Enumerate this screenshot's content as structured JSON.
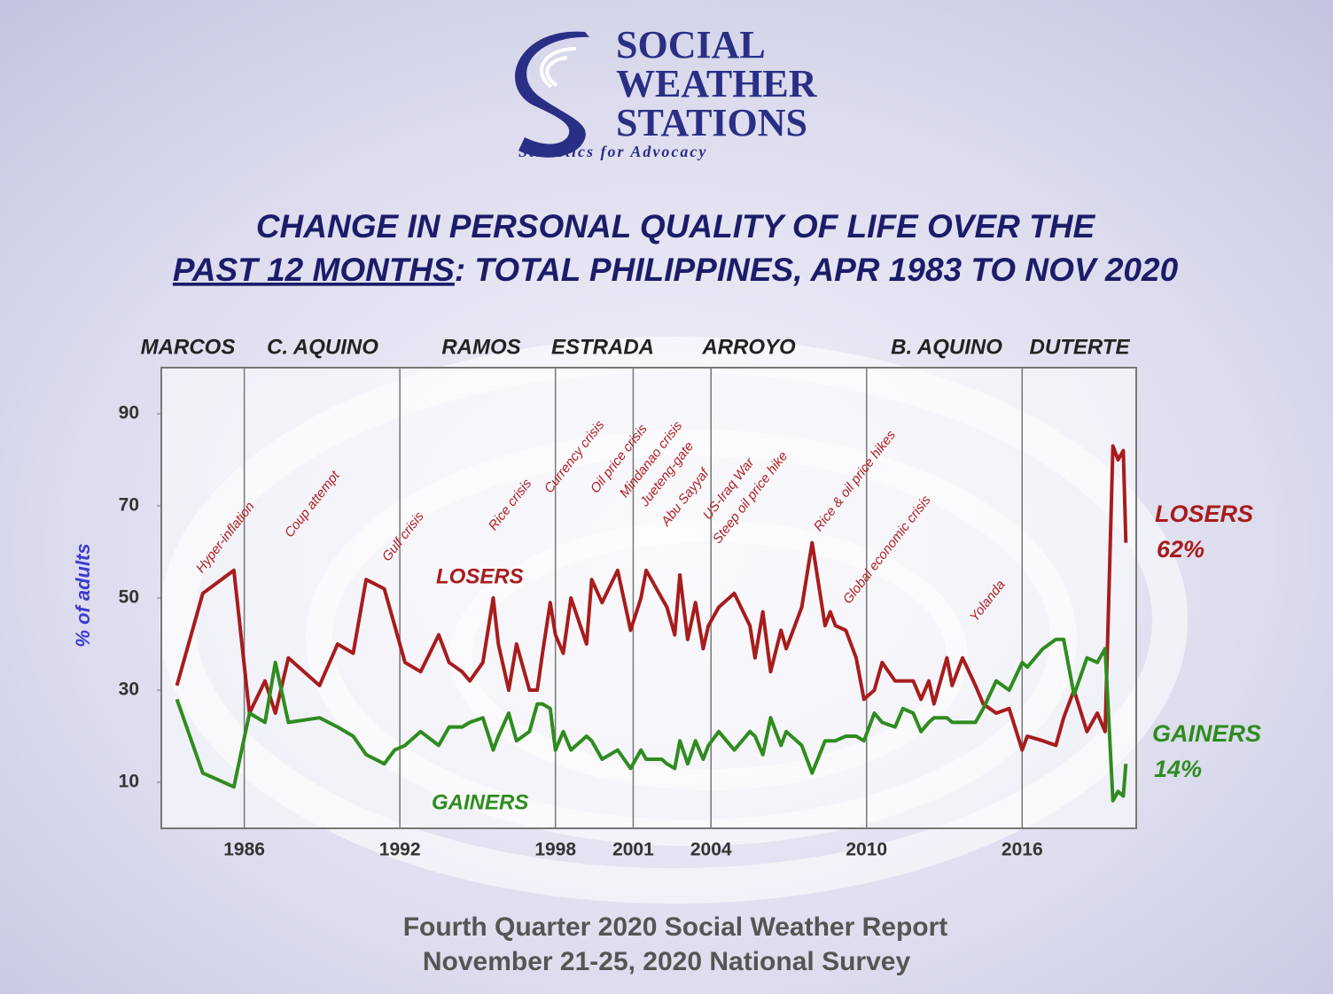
{
  "header": {
    "logo_lines": [
      "SOCIAL",
      "WEATHER",
      "STATIONS"
    ],
    "tagline": "Statistics for Advocacy"
  },
  "chart_data": {
    "type": "line",
    "title_lines": [
      "CHANGE IN PERSONAL QUALITY OF LIFE OVER THE"
    ],
    "title_underlined": "PAST 12 MONTHS",
    "title_rest": ": TOTAL PHILIPPINES, APR 1983 TO NOV 2020",
    "ylabel": "% of adults",
    "administrations": [
      "MARCOS",
      "C. AQUINO",
      "RAMOS",
      "ESTRADA",
      "ARROYO",
      "B. AQUINO",
      "DUTERTE"
    ],
    "annotations": [
      "Hyper-inflation",
      "Coup attempt",
      "Gulf crisis",
      "Rice crisis",
      "Currency crisis",
      "Oil price crisis",
      "Mindanao crisis",
      "Jueteng-gate",
      "Abu Sayyaf",
      "US-Iraq War",
      "Steep oil price hike",
      "Rice & oil price hikes",
      "Global economic crisis",
      "Yolanda"
    ],
    "x": [
      1983.4,
      1984.4,
      1985.6,
      1986.2,
      1986.8,
      1987.2,
      1987.7,
      1988.9,
      1989.6,
      1990.2,
      1990.7,
      1991.4,
      1991.8,
      1992.2,
      1992.8,
      1993.5,
      1993.9,
      1994.4,
      1994.7,
      1995.2,
      1995.6,
      1995.8,
      1996.2,
      1996.5,
      1997.0,
      1997.3,
      1997.5,
      1997.8,
      1998.0,
      1998.3,
      1998.6,
      1999.2,
      1999.4,
      1999.8,
      2000.4,
      2000.9,
      2001.3,
      2001.5,
      2002.1,
      2002.3,
      2002.6,
      2002.8,
      2003.1,
      2003.4,
      2003.7,
      2003.9,
      2004.3,
      2004.9,
      2005.5,
      2005.7,
      2006.0,
      2006.3,
      2006.7,
      2006.9,
      2007.5,
      2007.9,
      2008.4,
      2008.6,
      2008.8,
      2009.2,
      2009.6,
      2009.9,
      2010.3,
      2010.6,
      2011.1,
      2011.4,
      2011.8,
      2012.1,
      2012.4,
      2012.6,
      2013.1,
      2013.3,
      2013.7,
      2014.2,
      2014.5,
      2015.0,
      2015.5,
      2016.0,
      2016.2,
      2016.8,
      2017.3,
      2017.6,
      2018.0,
      2018.5,
      2018.9,
      2019.2,
      2019.5,
      2019.7,
      2019.9,
      2020.0
    ],
    "xlim": [
      1982.8,
      2020.4
    ],
    "xticks": [
      1986,
      1992,
      1998,
      2001,
      2004,
      2010,
      2016
    ],
    "ylim": [
      0,
      100
    ],
    "yticks": [
      10,
      30,
      50,
      70,
      90
    ],
    "grid": "x",
    "series": [
      {
        "name": "LOSERS",
        "color": "#a81c1c",
        "values": [
          31,
          51,
          56,
          25,
          32,
          25,
          37,
          31,
          40,
          38,
          54,
          52,
          44,
          36,
          34,
          42,
          36,
          34,
          32,
          36,
          50,
          40,
          30,
          40,
          30,
          30,
          38,
          49,
          42,
          38,
          50,
          40,
          54,
          49,
          56,
          43,
          50,
          56,
          50,
          48,
          42,
          55,
          41,
          49,
          39,
          44,
          48,
          51,
          44,
          37,
          47,
          34,
          43,
          39,
          48,
          62,
          44,
          47,
          44,
          43,
          37,
          28,
          30,
          36,
          32,
          32,
          32,
          28,
          32,
          27,
          37,
          31,
          37,
          31,
          27,
          25,
          26,
          17,
          20,
          19,
          18,
          24,
          30,
          21,
          25,
          21,
          83,
          80,
          82,
          62
        ],
        "value_labels": [
          null,
          null,
          null,
          null,
          null,
          null,
          null,
          null,
          null,
          null,
          null,
          null,
          null,
          null,
          null,
          null,
          null,
          null,
          null,
          null,
          null,
          null,
          null,
          null,
          null,
          null,
          null,
          null,
          null,
          null,
          null,
          null,
          null,
          null,
          null,
          null,
          null,
          null,
          null,
          null,
          null,
          null,
          null,
          null,
          null,
          null,
          null,
          null,
          null,
          null,
          null,
          null,
          null,
          null,
          null,
          null,
          null,
          null,
          null,
          null,
          null,
          null,
          null,
          null,
          null,
          null,
          null,
          null,
          null,
          null,
          null,
          null,
          null,
          null,
          null,
          null,
          null,
          null,
          null,
          null,
          null,
          null,
          null,
          null,
          null,
          null,
          null,
          null,
          null,
          "62%"
        ]
      },
      {
        "name": "GAINERS",
        "color": "#2f8c1f",
        "values": [
          28,
          12,
          9,
          25,
          23,
          36,
          23,
          24,
          22,
          20,
          16,
          14,
          17,
          18,
          21,
          18,
          22,
          22,
          23,
          24,
          17,
          20,
          25,
          19,
          21,
          27,
          27,
          26,
          17,
          21,
          17,
          20,
          19,
          15,
          17,
          13,
          17,
          15,
          15,
          14,
          13,
          19,
          14,
          19,
          15,
          18,
          21,
          17,
          21,
          20,
          16,
          24,
          18,
          21,
          18,
          12,
          19,
          19,
          19,
          20,
          20,
          19,
          25,
          23,
          22,
          26,
          25,
          21,
          23,
          24,
          24,
          23,
          23,
          23,
          26,
          32,
          30,
          36,
          35,
          39,
          41,
          41,
          29,
          37,
          36,
          39,
          6,
          8,
          7,
          14
        ],
        "value_labels": [
          null,
          null,
          null,
          null,
          null,
          null,
          null,
          null,
          null,
          null,
          null,
          null,
          null,
          null,
          null,
          null,
          null,
          null,
          null,
          null,
          null,
          null,
          null,
          null,
          null,
          null,
          null,
          null,
          null,
          null,
          null,
          null,
          null,
          null,
          null,
          null,
          null,
          null,
          null,
          null,
          null,
          null,
          null,
          null,
          null,
          null,
          null,
          null,
          null,
          null,
          null,
          null,
          null,
          null,
          null,
          null,
          null,
          null,
          null,
          null,
          null,
          null,
          null,
          null,
          null,
          null,
          null,
          null,
          null,
          null,
          null,
          null,
          null,
          null,
          null,
          null,
          null,
          null,
          null,
          null,
          null,
          null,
          null,
          null,
          null,
          null,
          null,
          null,
          null,
          "14%"
        ]
      }
    ]
  },
  "footer": {
    "lines": [
      "Fourth Quarter 2020  Social Weather Report",
      "November 21-25, 2020 National Survey"
    ]
  }
}
